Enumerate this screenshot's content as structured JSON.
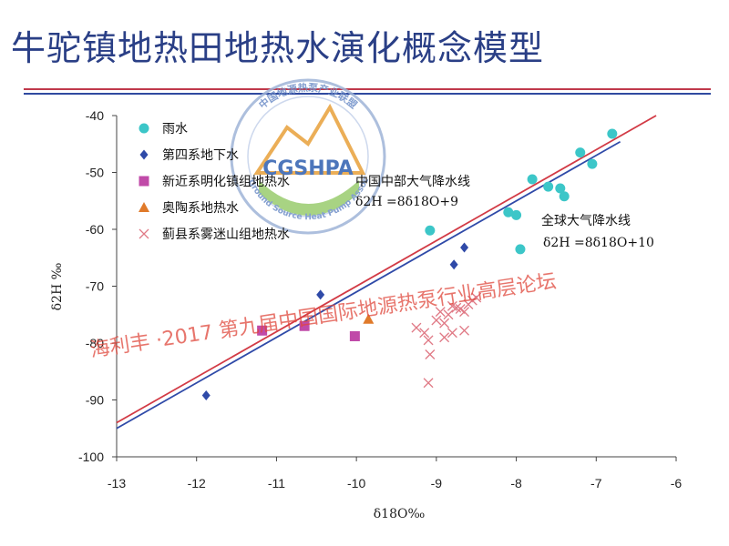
{
  "slide": {
    "title": "牛驼镇地热田地热水演化概念模型"
  },
  "colors": {
    "title": "#2a3f86",
    "rain": "#3cc6c8",
    "groundwater": "#2f4aa8",
    "minghuazhen": "#c04aa8",
    "ordovician": "#e07a2a",
    "wumishan": "#e07a86",
    "cmwl_line": "#2f4aa8",
    "gmwl_line": "#d23a45",
    "watermark": "#e0473c"
  },
  "watermark": {
    "text": "海利丰 ·2017  第九届中国国际地源热泵行业高层论坛",
    "logo_text": "CGSHPA",
    "logo_ring_cn": "中国地源热泵产业联盟",
    "logo_ring_en": "China Ground Source Heat Pump Association"
  },
  "chart_data": {
    "type": "scatter",
    "xlabel": "δ18O‰",
    "ylabel": "δ2H ‰",
    "xlim": [
      -13,
      -6
    ],
    "ylim": [
      -100,
      -40
    ],
    "x_ticks": [
      "-13",
      "-12",
      "-11",
      "-10",
      "-9",
      "-8",
      "-7",
      "-6"
    ],
    "y_ticks": [
      "-40",
      "-50",
      "-60",
      "-70",
      "-80",
      "-90",
      "-100"
    ],
    "grid": false,
    "legend_placement": "top-left",
    "series": [
      {
        "name": "雨水",
        "marker": "circle",
        "color": "#3cc6c8",
        "points": [
          [
            -6.8,
            -43.2
          ],
          [
            -7.2,
            -46.5
          ],
          [
            -7.05,
            -48.5
          ],
          [
            -7.8,
            -51.2
          ],
          [
            -7.6,
            -52.5
          ],
          [
            -7.45,
            -52.8
          ],
          [
            -7.4,
            -54.2
          ],
          [
            -8.1,
            -57.0
          ],
          [
            -8.0,
            -57.5
          ],
          [
            -9.08,
            -60.2
          ],
          [
            -7.95,
            -63.5
          ]
        ]
      },
      {
        "name": "第四系地下水",
        "marker": "diamond",
        "color": "#2f4aa8",
        "points": [
          [
            -11.88,
            -89.2
          ],
          [
            -10.45,
            -71.5
          ],
          [
            -8.78,
            -66.2
          ],
          [
            -8.65,
            -63.2
          ]
        ]
      },
      {
        "name": "新近系明化镇组地热水",
        "marker": "square",
        "color": "#c04aa8",
        "points": [
          [
            -11.18,
            -77.8
          ],
          [
            -10.65,
            -77.0
          ],
          [
            -10.02,
            -78.8
          ]
        ]
      },
      {
        "name": "奥陶系地热水",
        "marker": "triangle",
        "color": "#e07a2a",
        "points": [
          [
            -9.85,
            -75.8
          ]
        ]
      },
      {
        "name": "蓟县系雾迷山组地热水",
        "marker": "x",
        "color": "#e07a86",
        "points": [
          [
            -9.25,
            -77.3
          ],
          [
            -9.15,
            -78.2
          ],
          [
            -9.1,
            -79.5
          ],
          [
            -9.08,
            -82.0
          ],
          [
            -9.1,
            -87.0
          ],
          [
            -8.95,
            -74.5
          ],
          [
            -8.9,
            -76.5
          ],
          [
            -8.85,
            -75.0
          ],
          [
            -8.8,
            -73.5
          ],
          [
            -8.75,
            -73.8
          ],
          [
            -8.7,
            -74.0
          ],
          [
            -8.65,
            -74.5
          ],
          [
            -8.6,
            -73.2
          ],
          [
            -8.55,
            -72.5
          ],
          [
            -8.5,
            -72.0
          ],
          [
            -8.9,
            -79.0
          ],
          [
            -8.65,
            -77.8
          ],
          [
            -9.0,
            -76.0
          ],
          [
            -8.8,
            -78.2
          ]
        ]
      }
    ],
    "lines": [
      {
        "name": "中国中部大气降水线",
        "equation": "δ2H =8δ18O+9",
        "slope": 8,
        "intercept": 9,
        "color": "#2f4aa8",
        "x_range": [
          -13,
          -6.7
        ]
      },
      {
        "name": "全球大气降水线",
        "equation": "δ2H =8δ18O+10",
        "slope": 8,
        "intercept": 10,
        "color": "#d23a45",
        "x_range": [
          -13,
          -6.25
        ]
      }
    ]
  }
}
